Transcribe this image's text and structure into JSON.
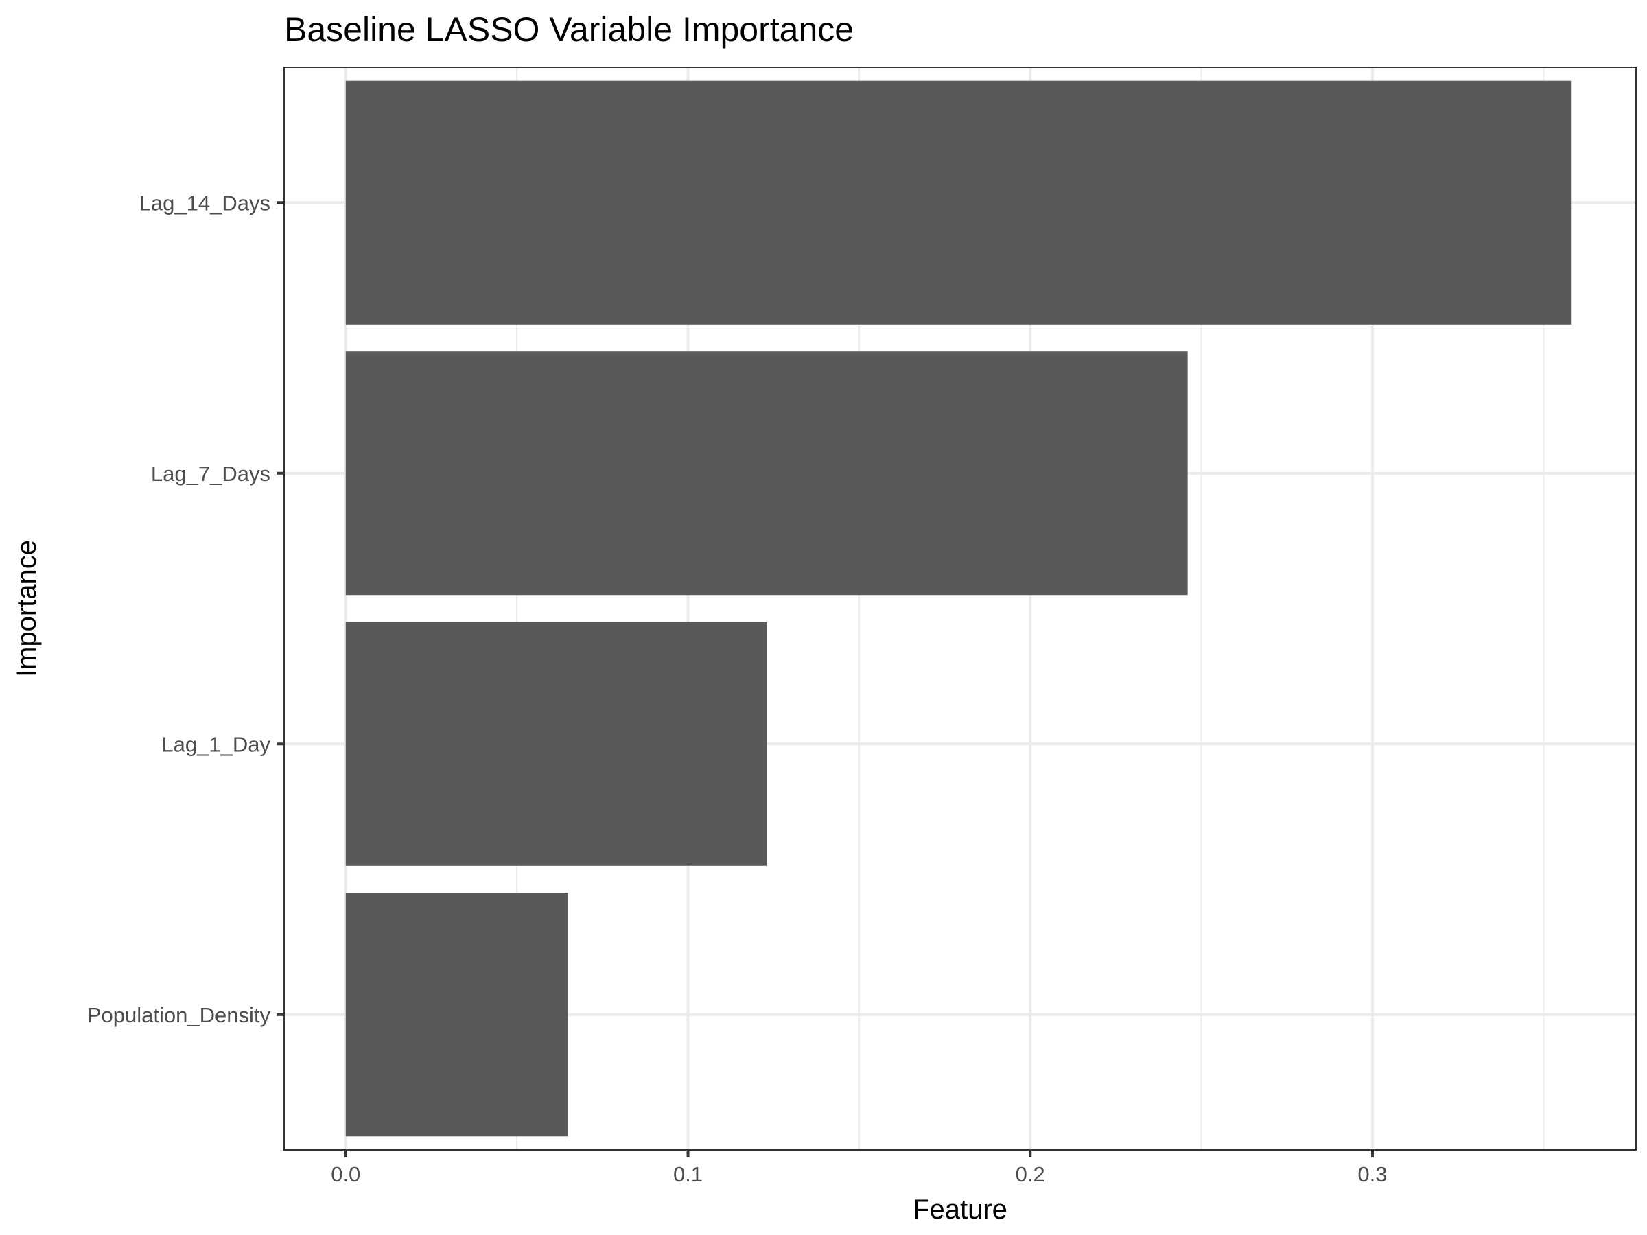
{
  "chart_data": {
    "type": "bar",
    "orientation": "horizontal",
    "title": "Baseline LASSO Variable Importance",
    "xlabel": "Feature",
    "ylabel": "Importance",
    "categories": [
      "Lag_14_Days",
      "Lag_7_Days",
      "Lag_1_Day",
      "Population_Density"
    ],
    "values": [
      0.358,
      0.246,
      0.123,
      0.065
    ],
    "xlim": [
      -0.018,
      0.377
    ],
    "xticks": [
      0.0,
      0.1,
      0.2,
      0.3
    ],
    "xtick_labels": [
      "0.0",
      "0.1",
      "0.2",
      "0.3"
    ],
    "grid": true,
    "bar_color": "#595959",
    "theme": "bw"
  }
}
